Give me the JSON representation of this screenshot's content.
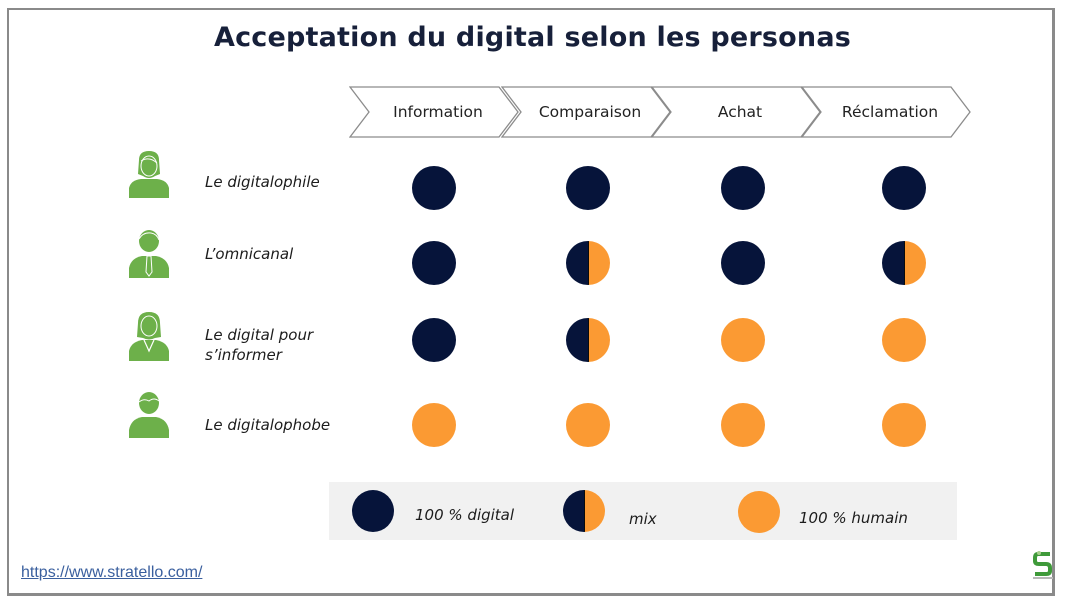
{
  "title": "Acceptation du digital selon les personas",
  "stages": [
    {
      "label": "Information"
    },
    {
      "label": "Comparaison"
    },
    {
      "label": "Achat"
    },
    {
      "label": "Réclamation"
    }
  ],
  "personas": [
    {
      "name": "Le digitalophile",
      "icon": "woman-icon",
      "values": [
        "digital",
        "digital",
        "digital",
        "digital"
      ]
    },
    {
      "name": "L’omnicanal",
      "icon": "man-tie-icon",
      "values": [
        "digital",
        "mix",
        "digital",
        "mix"
      ]
    },
    {
      "name_line1": "Le digital pour",
      "name_line2": "s’informer",
      "icon": "woman-suit-icon",
      "values": [
        "digital",
        "mix",
        "humain",
        "humain"
      ]
    },
    {
      "name": "Le digitalophobe",
      "icon": "man-icon",
      "values": [
        "humain",
        "humain",
        "humain",
        "humain"
      ]
    }
  ],
  "legend": {
    "digital": "100 % digital",
    "mix": "mix",
    "humain": "100 % humain"
  },
  "colors": {
    "digital": "#06143a",
    "humain": "#fb9a33",
    "persona_icon": "#6db04a",
    "title": "#17203a"
  },
  "footer": {
    "url": "https://www.stratello.com/"
  }
}
